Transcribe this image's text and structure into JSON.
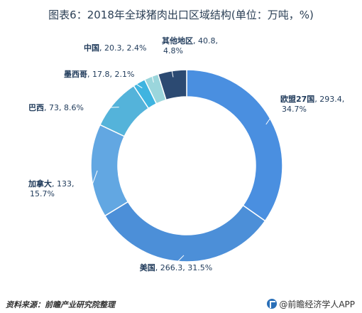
{
  "chart_data": {
    "type": "pie",
    "title": "图表6：2018年全球猪肉出口区域结构(单位：万吨，%)",
    "slices": [
      {
        "name": "欧盟27国",
        "value": 293.4,
        "percent": 34.7,
        "color": "#4a8fe0",
        "value_text": "293.4,",
        "percent_text": "34.7%"
      },
      {
        "name": "美国",
        "value": 266.3,
        "percent": 31.5,
        "color": "#4c8fd8",
        "value_text": "266.3, 31.5%",
        "percent_text": ""
      },
      {
        "name": "加拿大",
        "value": 133,
        "percent": 15.7,
        "color": "#62a7e2",
        "value_text": "133,",
        "percent_text": "15.7%"
      },
      {
        "name": "巴西",
        "value": 73,
        "percent": 8.6,
        "color": "#54b3da",
        "value_text": "73, 8.6%",
        "percent_text": ""
      },
      {
        "name": "墨西哥",
        "value": 17.8,
        "percent": 2.1,
        "color": "#3fb4e0",
        "value_text": "17.8, 2.1%",
        "percent_text": ""
      },
      {
        "name": "中国",
        "value": 20.3,
        "percent": 2.4,
        "color": "#9bd6dc",
        "value_text": "20.3, 2.4%",
        "percent_text": ""
      },
      {
        "name": "其他地区",
        "value": 40.8,
        "percent": 4.8,
        "color": "#2c4a72",
        "value_text": "40.8,",
        "percent_text": "4.8%"
      }
    ]
  },
  "footer": {
    "source": "资料来源：前瞻产业研究院整理",
    "brand": "@前瞻经济学人APP"
  }
}
